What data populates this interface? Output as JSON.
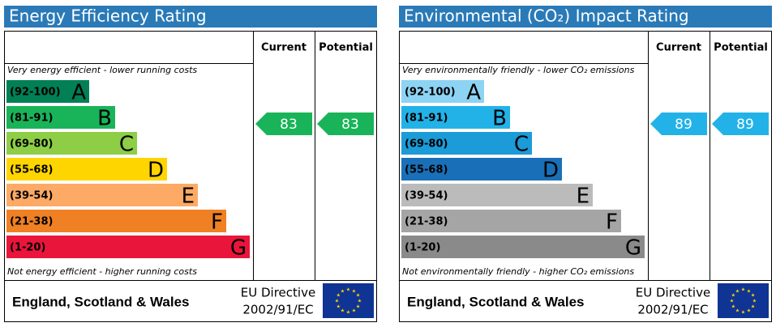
{
  "panels": [
    {
      "title": "Energy Efficiency Rating",
      "headers": [
        "Current",
        "Potential"
      ],
      "top_note": "Very energy efficient - lower running costs",
      "bottom_note": "Not energy efficient - higher running costs",
      "bands": [
        {
          "range": "(92-100)",
          "letter": "A",
          "color": "#008054"
        },
        {
          "range": "(81-91)",
          "letter": "B",
          "color": "#19b459"
        },
        {
          "range": "(69-80)",
          "letter": "C",
          "color": "#8dce46"
        },
        {
          "range": "(55-68)",
          "letter": "D",
          "color": "#ffd500"
        },
        {
          "range": "(39-54)",
          "letter": "E",
          "color": "#fcaa65"
        },
        {
          "range": "(21-38)",
          "letter": "F",
          "color": "#ef8023"
        },
        {
          "range": "(1-20)",
          "letter": "G",
          "color": "#e9153b"
        }
      ],
      "current": 83,
      "potential": 83,
      "region": "England, Scotland & Wales",
      "directive": [
        "EU Directive",
        "2002/91/EC"
      ]
    },
    {
      "title": "Environmental (CO₂) Impact Rating",
      "headers": [
        "Current",
        "Potential"
      ],
      "top_note": "Very environmentally friendly - lower CO₂ emissions",
      "bottom_note": "Not environmentally friendly - higher CO₂ emissions",
      "bands": [
        {
          "range": "(92-100)",
          "letter": "A",
          "color": "#8dd3f3"
        },
        {
          "range": "(81-91)",
          "letter": "B",
          "color": "#22b2e8"
        },
        {
          "range": "(69-80)",
          "letter": "C",
          "color": "#1b9bd8"
        },
        {
          "range": "(55-68)",
          "letter": "D",
          "color": "#1a70b8"
        },
        {
          "range": "(39-54)",
          "letter": "E",
          "color": "#bbbbbb"
        },
        {
          "range": "(21-38)",
          "letter": "F",
          "color": "#a5a5a5"
        },
        {
          "range": "(1-20)",
          "letter": "G",
          "color": "#8a8a8a"
        }
      ],
      "current": 89,
      "potential": 89,
      "region": "England, Scotland & Wales",
      "directive": [
        "EU Directive",
        "2002/91/EC"
      ]
    }
  ]
}
